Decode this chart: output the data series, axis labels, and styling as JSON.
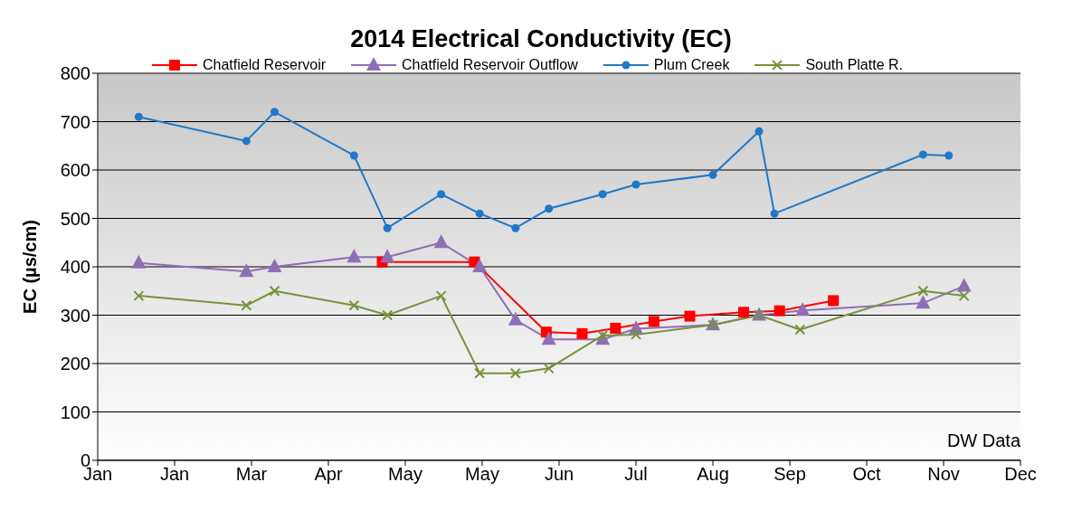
{
  "chart_data": {
    "type": "line",
    "title": "2014 Electrical Conductivity (EC)",
    "ylabel": "EC (µs/cm)",
    "xlim": [
      "2014-01-01",
      "2014-12-27"
    ],
    "xticks": [
      {
        "value": "2014-01-01",
        "label": "Jan"
      },
      {
        "value": "2014-01-31",
        "label": "Jan"
      },
      {
        "value": "2014-03-02",
        "label": "Mar"
      },
      {
        "value": "2014-04-01",
        "label": "Apr"
      },
      {
        "value": "2014-05-01",
        "label": "May"
      },
      {
        "value": "2014-05-31",
        "label": "May"
      },
      {
        "value": "2014-06-30",
        "label": "Jun"
      },
      {
        "value": "2014-07-30",
        "label": "Jul"
      },
      {
        "value": "2014-08-29",
        "label": "Aug"
      },
      {
        "value": "2014-09-28",
        "label": "Sep"
      },
      {
        "value": "2014-10-28",
        "label": "Oct"
      },
      {
        "value": "2014-11-27",
        "label": "Nov"
      },
      {
        "value": "2014-12-27",
        "label": "Dec"
      }
    ],
    "ylim": [
      0,
      800
    ],
    "yticks": [
      0,
      100,
      200,
      300,
      400,
      500,
      600,
      700,
      800
    ],
    "grid": "y",
    "legend": "top",
    "annotations": [
      "DW Data"
    ],
    "series": [
      {
        "name": "Chatfield Reservoir",
        "color": "#ff0000",
        "marker": "square",
        "x": [
          "2014-04-22",
          "2014-05-28",
          "2014-06-25",
          "2014-07-09",
          "2014-07-22",
          "2014-08-06",
          "2014-08-20",
          "2014-09-10",
          "2014-09-24",
          "2014-10-15"
        ],
        "values": [
          410,
          410,
          265,
          262,
          273,
          287,
          298,
          306,
          309,
          330
        ]
      },
      {
        "name": "Chatfield Reservoir Outflow",
        "color": "#8e6fb5",
        "marker": "triangle",
        "x": [
          "2014-01-17",
          "2014-02-28",
          "2014-03-11",
          "2014-04-11",
          "2014-04-24",
          "2014-05-15",
          "2014-05-30",
          "2014-06-13",
          "2014-06-26",
          "2014-07-17",
          "2014-07-30",
          "2014-08-29",
          "2014-09-16",
          "2014-10-03",
          "2014-11-19",
          "2014-12-05"
        ],
        "values": [
          408,
          390,
          400,
          420,
          420,
          450,
          400,
          290,
          250,
          250,
          272,
          280,
          300,
          310,
          325,
          360
        ]
      },
      {
        "name": "Plum Creek",
        "color": "#1f78c8",
        "marker": "circle",
        "x": [
          "2014-01-17",
          "2014-02-28",
          "2014-03-11",
          "2014-04-11",
          "2014-04-24",
          "2014-05-15",
          "2014-05-30",
          "2014-06-13",
          "2014-06-26",
          "2014-07-17",
          "2014-07-30",
          "2014-08-29",
          "2014-09-16",
          "2014-09-22",
          "2014-11-19",
          "2014-11-29"
        ],
        "values": [
          710,
          660,
          720,
          630,
          480,
          550,
          510,
          480,
          520,
          550,
          570,
          590,
          680,
          510,
          632,
          630
        ]
      },
      {
        "name": "South Platte R.",
        "color": "#77933c",
        "marker": "cross",
        "x": [
          "2014-01-17",
          "2014-02-28",
          "2014-03-11",
          "2014-04-11",
          "2014-04-24",
          "2014-05-15",
          "2014-05-30",
          "2014-06-13",
          "2014-06-26",
          "2014-07-17",
          "2014-07-30",
          "2014-08-29",
          "2014-09-16",
          "2014-10-02",
          "2014-11-19",
          "2014-12-05"
        ],
        "values": [
          340,
          320,
          350,
          320,
          300,
          340,
          180,
          180,
          190,
          258,
          260,
          280,
          300,
          270,
          350,
          340
        ]
      }
    ]
  }
}
